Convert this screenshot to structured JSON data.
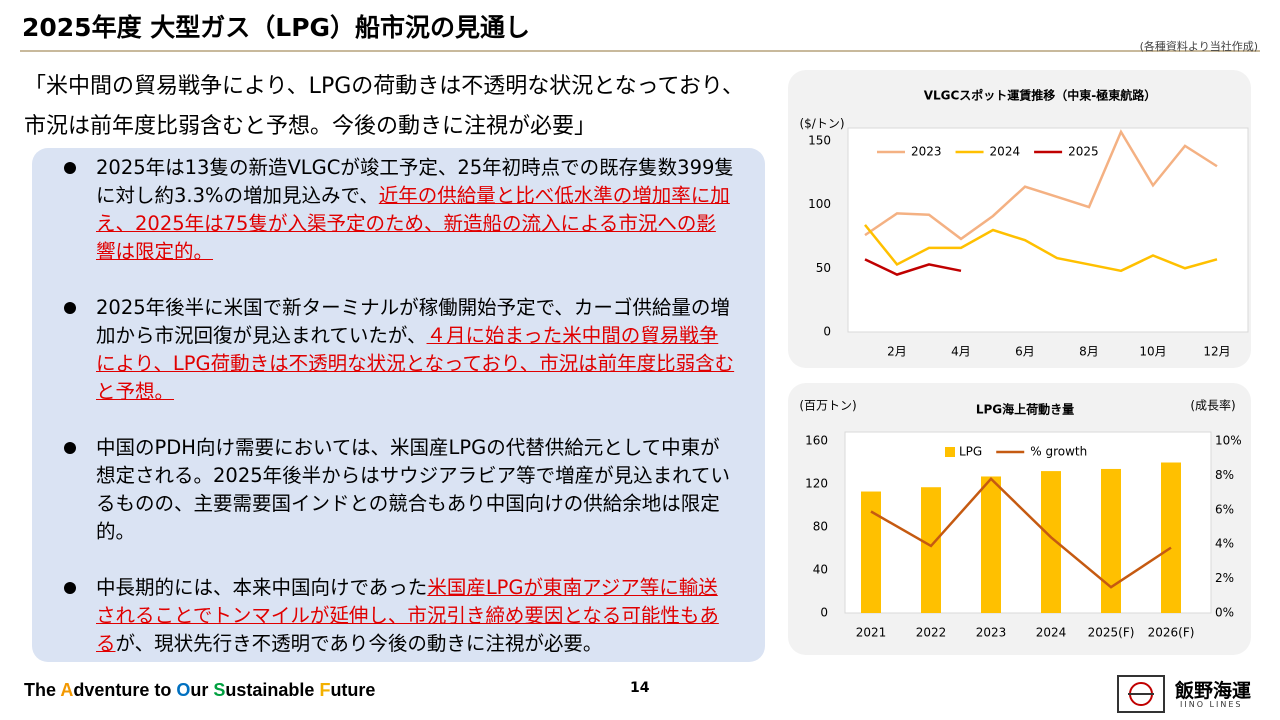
{
  "header": {
    "title": "2025年度 大型ガス（LPG）船市況の見通し",
    "source": "(各種資料より当社作成)"
  },
  "quote": [
    "「米中間の貿易戦争により、LPGの荷動きは不透明な状況となっており、",
    "市況は前年度比弱含むと予想。今後の動きに注視が必要」"
  ],
  "bullets": [
    {
      "segments": [
        {
          "text": "2025年は13隻の新造VLGCが竣工予定、25年初時点での既存隻数399隻に対し約3.3%の増加見込みで、"
        },
        {
          "text": "近年の供給量と比べ低水準の増加率に加え、2025年は75隻が入渠予定のため、新造船の流入による市況への影響は限定的。",
          "emphasis": true
        }
      ]
    },
    {
      "segments": [
        {
          "text": "2025年後半に米国で新ターミナルが稼働開始予定で、カーゴ供給量の増加から市況回復が見込まれていたが、"
        },
        {
          "text": "４月に始まった米中間の貿易戦争により、LPG荷動きは不透明な状況となっており、市況は前年度比弱含むと予想。",
          "emphasis": true
        }
      ]
    },
    {
      "segments": [
        {
          "text": "中国のPDH向け需要においては、米国産LPGの代替供給元として中東が想定される。2025年後半からはサウジアラビア等で増産が見込まれているものの、主要需要国インドとの競合もあり中国向けの供給余地は限定的。"
        }
      ]
    },
    {
      "segments": [
        {
          "text": "中長期的には、本来中国向けであった"
        },
        {
          "text": "米国産LPGが東南アジア等に輸送されることでトンマイルが延伸し、市況引き締め要因となる可能性もある",
          "emphasis": true
        },
        {
          "text": "が、現状先行き不透明であり今後の動きに注視が必要。"
        }
      ]
    }
  ],
  "chart_data": [
    {
      "type": "line",
      "title": "VLGCスポット運賃推移（中東-極東航路）",
      "y_label": "($/トン)",
      "categories": [
        null,
        "2月",
        null,
        "4月",
        null,
        "6月",
        null,
        "8月",
        null,
        "10月",
        null,
        "12月"
      ],
      "series": [
        {
          "name": "2023",
          "color": "#f4b183",
          "values": [
            76,
            93,
            92,
            73,
            91,
            114,
            106,
            98,
            157,
            115,
            146,
            130
          ]
        },
        {
          "name": "2024",
          "color": "#ffc000",
          "values": [
            84,
            53,
            66,
            66,
            80,
            72,
            58,
            53,
            48,
            60,
            50,
            57
          ]
        },
        {
          "name": "2025",
          "color": "#c00000",
          "values": [
            57,
            45,
            53,
            48,
            null,
            null,
            null,
            null,
            null,
            null,
            null,
            null
          ]
        }
      ],
      "ylim": [
        0,
        160
      ],
      "yticks": [
        0,
        50,
        100,
        150
      ],
      "grid": false,
      "legend": "top"
    },
    {
      "type": "bar",
      "title": "LPG海上荷動き量",
      "y_label": "(百万トン)",
      "y2_label": "(成長率)",
      "categories": [
        "2021",
        "2022",
        "2023",
        "2024",
        "2025(F)",
        "2026(F)"
      ],
      "series": [
        {
          "name": "LPG",
          "color": "#ffc000",
          "values": [
            113,
            117,
            127,
            132,
            134,
            140
          ]
        },
        {
          "name": "% growth",
          "type": "line",
          "axis": "y2",
          "color": "#c55a11",
          "values": [
            5.9,
            3.9,
            7.8,
            4.4,
            1.5,
            3.8
          ]
        }
      ],
      "ylim": [
        0,
        160
      ],
      "yticks": [
        0,
        40,
        80,
        120,
        160
      ],
      "y2lim": [
        0,
        10
      ],
      "y2ticks": [
        {
          "value": 0,
          "label": "0%"
        },
        {
          "value": 2,
          "label": "2%"
        },
        {
          "value": 4,
          "label": "4%"
        },
        {
          "value": 6,
          "label": "6%"
        },
        {
          "value": 8,
          "label": "8%"
        },
        {
          "value": 10,
          "label": "10%"
        }
      ],
      "grid": false,
      "legend": "top"
    }
  ],
  "footer": {
    "slogan": [
      {
        "text": "The "
      },
      {
        "text": "A",
        "color": "#f39800"
      },
      {
        "text": "dventure to "
      },
      {
        "text": "O",
        "color": "#0070c0"
      },
      {
        "text": "ur "
      },
      {
        "text": "S",
        "color": "#00a040"
      },
      {
        "text": "ustainable "
      },
      {
        "text": "F",
        "color": "#f3b000"
      },
      {
        "text": "uture"
      }
    ],
    "page": "14",
    "logo": "飯野海運",
    "logo_en": "IINO LINES"
  }
}
